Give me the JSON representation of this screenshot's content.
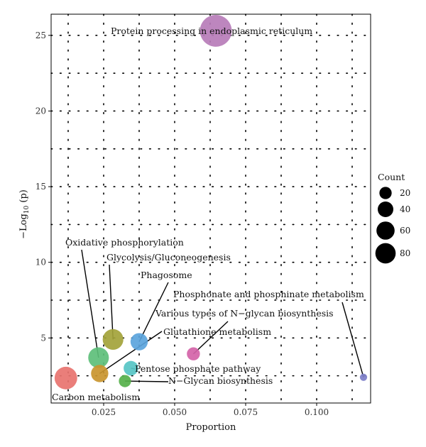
{
  "chart_data": {
    "type": "scatter",
    "xlabel": "Proportion",
    "ylabel_main": "−Log",
    "ylabel_sub": "10",
    "ylabel_tail": " (p)",
    "xlim": [
      0.0065,
      0.119
    ],
    "ylim": [
      0.7,
      26.4
    ],
    "x_ticks": [
      0.025,
      0.05,
      0.075,
      0.1
    ],
    "x_tick_labels": [
      "0.025",
      "0.050",
      "0.075",
      "0.100"
    ],
    "y_ticks": [
      5,
      10,
      15,
      20,
      25
    ],
    "y_tick_labels": [
      "5",
      "10",
      "15",
      "20",
      "25"
    ],
    "grid": true,
    "points": [
      {
        "name": "Protein processing in endoplasmic reticulum",
        "x": 0.0645,
        "y": 25.3,
        "count": 95,
        "color": "#b77cb9"
      },
      {
        "name": "Oxidative phosphorylation",
        "x": 0.0232,
        "y": 3.7,
        "count": 40,
        "color": "#5dbf7a"
      },
      {
        "name": "Glycolysis/Gluconeogenesis",
        "x": 0.0283,
        "y": 4.9,
        "count": 40,
        "color": "#a3a33a"
      },
      {
        "name": "Phagosome",
        "x": 0.0375,
        "y": 4.75,
        "count": 28,
        "color": "#5ba4dc"
      },
      {
        "name": "Phosphonate and phosphinate metabolism",
        "x": 0.1165,
        "y": 2.4,
        "count": 5,
        "color": "#7d7fc9"
      },
      {
        "name": "Various types of N−glycan biosynthesis",
        "x": 0.0566,
        "y": 3.95,
        "count": 16,
        "color": "#d463a8"
      },
      {
        "name": "Glutathione metabolism",
        "x": 0.0236,
        "y": 2.65,
        "count": 28,
        "color": "#c9952e"
      },
      {
        "name": "Pentose phosphate pathway",
        "x": 0.0346,
        "y": 3.0,
        "count": 20,
        "color": "#56c4c4"
      },
      {
        "name": "N−Glycan biosynthesis",
        "x": 0.0325,
        "y": 2.15,
        "count": 14,
        "color": "#55b04a"
      },
      {
        "name": "Carbon metabolism",
        "x": 0.0117,
        "y": 2.35,
        "count": 48,
        "color": "#e8736f"
      }
    ],
    "legend": {
      "title": "Count",
      "entries": [
        {
          "label": "20",
          "value": 20
        },
        {
          "label": "40",
          "value": 40
        },
        {
          "label": "60",
          "value": 60
        },
        {
          "label": "80",
          "value": 80
        }
      ]
    }
  }
}
